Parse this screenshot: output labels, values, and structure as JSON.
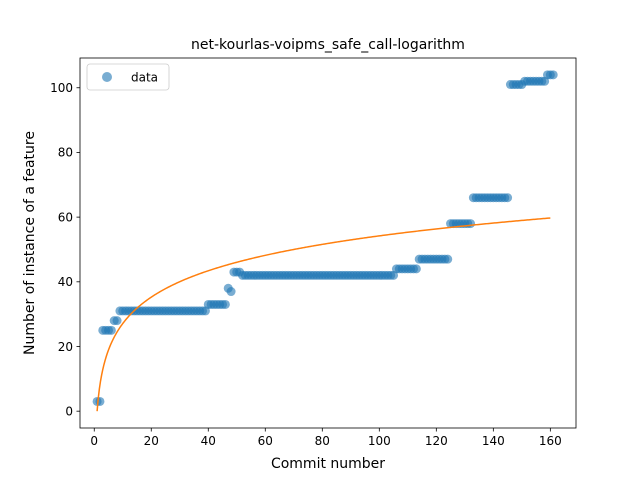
{
  "chart_data": {
    "type": "scatter",
    "title": "net-kourlas-voipms_safe_call-logarithm",
    "xlabel": "Commit number",
    "ylabel": "Number of instance of a feature",
    "xlim": [
      -5,
      169
    ],
    "ylim": [
      -5.2,
      109.2
    ],
    "x_ticks": [
      0,
      20,
      40,
      60,
      80,
      100,
      120,
      140,
      160
    ],
    "y_ticks": [
      0,
      20,
      40,
      60,
      80,
      100
    ],
    "legend": {
      "position": "top-left",
      "entries": [
        {
          "label": "data"
        }
      ]
    },
    "colors": {
      "data": "#1f77b4",
      "fit": "#ff7f0e"
    },
    "series": [
      {
        "kind": "points",
        "runs": [
          {
            "x_start": 1,
            "x_end": 2,
            "y": 3
          },
          {
            "x_start": 3,
            "x_end": 6,
            "y": 25
          },
          {
            "x_start": 7,
            "x_end": 8,
            "y": 28
          },
          {
            "x_start": 9,
            "x_end": 39,
            "y": 31
          },
          {
            "x_start": 40,
            "x_end": 46,
            "y": 33
          },
          {
            "x_start": 47,
            "x_end": 47,
            "y": 38
          },
          {
            "x_start": 48,
            "x_end": 48,
            "y": 37
          },
          {
            "x_start": 49,
            "x_end": 51,
            "y": 43
          },
          {
            "x_start": 52,
            "x_end": 105,
            "y": 42
          },
          {
            "x_start": 106,
            "x_end": 113,
            "y": 44
          },
          {
            "x_start": 114,
            "x_end": 124,
            "y": 47
          },
          {
            "x_start": 125,
            "x_end": 132,
            "y": 58
          },
          {
            "x_start": 133,
            "x_end": 145,
            "y": 66
          },
          {
            "x_start": 146,
            "x_end": 150,
            "y": 101
          },
          {
            "x_start": 151,
            "x_end": 158,
            "y": 102
          },
          {
            "x_start": 159,
            "x_end": 161,
            "y": 104
          }
        ]
      },
      {
        "kind": "line",
        "fit": "logarithmic",
        "coefficients": {
          "a": 11.77,
          "b": 0.0
        },
        "x_range": [
          1,
          160
        ]
      }
    ]
  }
}
